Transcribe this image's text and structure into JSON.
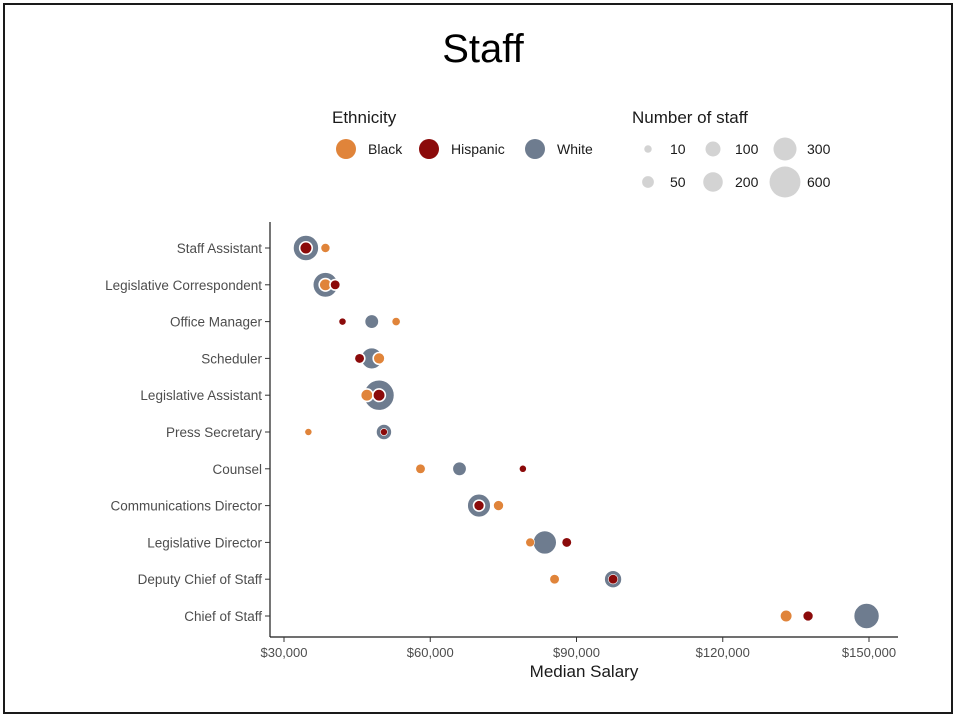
{
  "chart_data": {
    "type": "scatter",
    "title": "Staff",
    "xlabel": "Median Salary",
    "ylabel": "",
    "xlim": [
      29000,
      155000
    ],
    "x_ticks": [
      30000,
      60000,
      90000,
      120000,
      150000
    ],
    "x_tick_labels": [
      "$30,000",
      "$60,000",
      "$90,000",
      "$120,000",
      "$150,000"
    ],
    "grid": false,
    "legend_placement": "top",
    "color_legend": {
      "title": "Ethnicity",
      "entries": [
        {
          "label": "Black",
          "color": "#e0843a"
        },
        {
          "label": "Hispanic",
          "color": "#8b0a0a"
        },
        {
          "label": "White",
          "color": "#6e7c8f"
        }
      ]
    },
    "size_legend": {
      "title": "Number of staff",
      "values": [
        10,
        50,
        100,
        200,
        300,
        600
      ],
      "labels": [
        "10",
        "50",
        "100",
        "200",
        "300",
        "600"
      ]
    },
    "categories": [
      "Staff Assistant",
      "Legislative Correspondent",
      "Office Manager",
      "Scheduler",
      "Legislative Assistant",
      "Press Secretary",
      "Counsel",
      "Communications Director",
      "Legislative Director",
      "Deputy Chief of Staff",
      "Chief of Staff"
    ],
    "series": [
      {
        "name": "White",
        "color": "#6e7c8f",
        "values": [
          {
            "category": "Staff Assistant",
            "x": 34500,
            "count": 400
          },
          {
            "category": "Legislative Correspondent",
            "x": 38500,
            "count": 380
          },
          {
            "category": "Office Manager",
            "x": 48000,
            "count": 90
          },
          {
            "category": "Scheduler",
            "x": 48000,
            "count": 260
          },
          {
            "category": "Legislative Assistant",
            "x": 49500,
            "count": 600
          },
          {
            "category": "Press Secretary",
            "x": 50500,
            "count": 120
          },
          {
            "category": "Counsel",
            "x": 66000,
            "count": 90
          },
          {
            "category": "Communications Director",
            "x": 70000,
            "count": 320
          },
          {
            "category": "Legislative Director",
            "x": 83500,
            "count": 330
          },
          {
            "category": "Deputy Chief of Staff",
            "x": 97500,
            "count": 160
          },
          {
            "category": "Chief of Staff",
            "x": 149500,
            "count": 400
          }
        ]
      },
      {
        "name": "Black",
        "color": "#e0843a",
        "values": [
          {
            "category": "Staff Assistant",
            "x": 38500,
            "count": 30
          },
          {
            "category": "Legislative Correspondent",
            "x": 38500,
            "count": 60
          },
          {
            "category": "Office Manager",
            "x": 53000,
            "count": 15
          },
          {
            "category": "Scheduler",
            "x": 49500,
            "count": 50
          },
          {
            "category": "Legislative Assistant",
            "x": 47000,
            "count": 60
          },
          {
            "category": "Press Secretary",
            "x": 35000,
            "count": 8
          },
          {
            "category": "Counsel",
            "x": 58000,
            "count": 25
          },
          {
            "category": "Communications Director",
            "x": 74000,
            "count": 40
          },
          {
            "category": "Legislative Director",
            "x": 80500,
            "count": 20
          },
          {
            "category": "Deputy Chief of Staff",
            "x": 85500,
            "count": 25
          },
          {
            "category": "Chief of Staff",
            "x": 133000,
            "count": 60
          }
        ]
      },
      {
        "name": "Hispanic",
        "color": "#8b0a0a",
        "values": [
          {
            "category": "Staff Assistant",
            "x": 34500,
            "count": 60
          },
          {
            "category": "Legislative Correspondent",
            "x": 40500,
            "count": 35
          },
          {
            "category": "Office Manager",
            "x": 42000,
            "count": 8
          },
          {
            "category": "Scheduler",
            "x": 45500,
            "count": 35
          },
          {
            "category": "Legislative Assistant",
            "x": 49500,
            "count": 60
          },
          {
            "category": "Press Secretary",
            "x": 50500,
            "count": 8
          },
          {
            "category": "Counsel",
            "x": 79000,
            "count": 8
          },
          {
            "category": "Communications Director",
            "x": 70000,
            "count": 40
          },
          {
            "category": "Legislative Director",
            "x": 88000,
            "count": 35
          },
          {
            "category": "Deputy Chief of Staff",
            "x": 97500,
            "count": 25
          },
          {
            "category": "Chief of Staff",
            "x": 137500,
            "count": 40
          }
        ]
      }
    ]
  }
}
